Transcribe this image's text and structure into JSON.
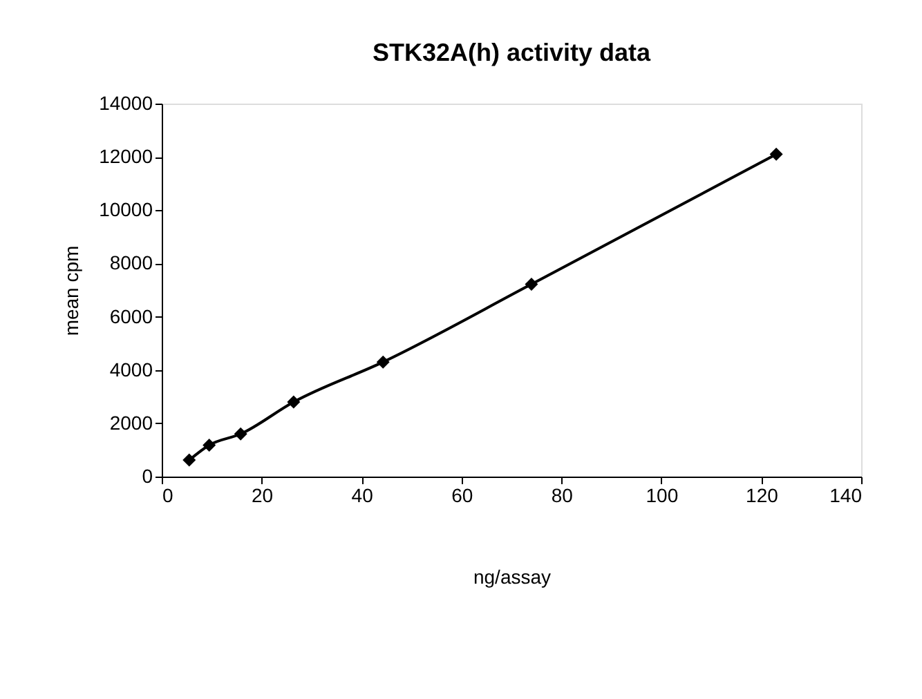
{
  "chart_data": {
    "type": "line",
    "title": "STK32A(h) activity data",
    "xlabel": "ng/assay",
    "ylabel": "mean cpm",
    "x": [
      5.5,
      9.5,
      15.8,
      26.4,
      44.3,
      74,
      123
    ],
    "series": [
      {
        "color": "#000000",
        "values": [
          620,
          1180,
          1600,
          2800,
          4300,
          7220,
          12100
        ]
      }
    ],
    "xlim": [
      0,
      140
    ],
    "xticks": [
      0,
      20,
      40,
      60,
      80,
      100,
      120,
      140
    ],
    "ylim": [
      0,
      14000
    ],
    "yticks": [
      0,
      2000,
      4000,
      6000,
      8000,
      10000,
      12000,
      14000
    ],
    "marker": "diamond",
    "line_style": "solid",
    "grid": false,
    "legend": false
  }
}
